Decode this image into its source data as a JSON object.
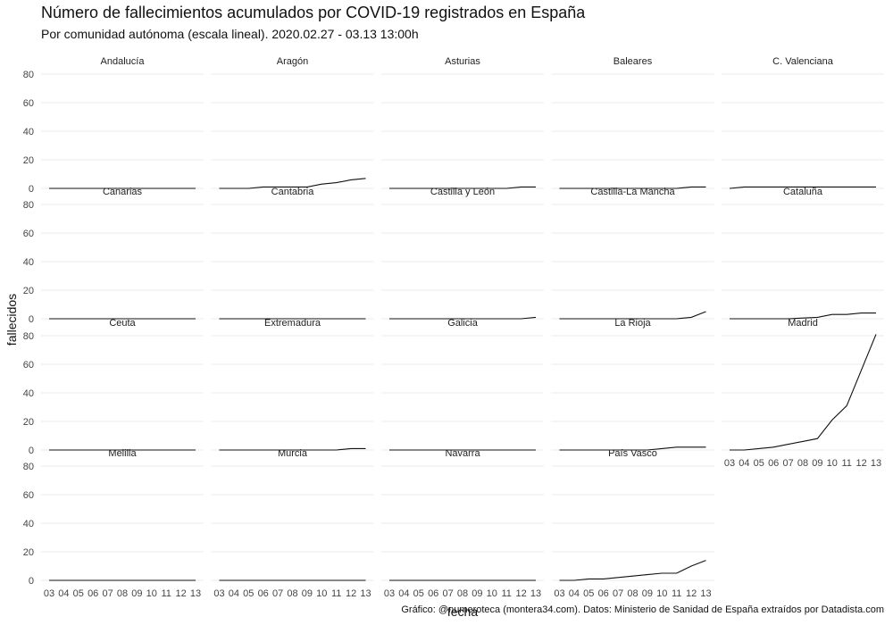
{
  "title": "Número de fallecimientos acumulados por COVID-19 registrados en España",
  "subtitle": "Por comunidad autónoma (escala lineal). 2020.02.27 - 03.13 13:00h",
  "caption": "Gráfico: @numeroteca (montera34.com). Datos: Ministerio de Sanidad de España extraídos por Datadista.com",
  "chart_data": {
    "type": "line",
    "facet": true,
    "xlabel": "fecha",
    "ylabel": "fallecidos",
    "x": [
      "03",
      "04",
      "05",
      "06",
      "07",
      "08",
      "09",
      "10",
      "11",
      "12",
      "13"
    ],
    "ylim": [
      0,
      85
    ],
    "yticks": [
      0,
      20,
      40,
      60,
      80
    ],
    "grid": true,
    "panels": [
      {
        "name": "Andalucía",
        "values": [
          0,
          0,
          0,
          0,
          0,
          0,
          0,
          0,
          0,
          0,
          0
        ]
      },
      {
        "name": "Aragón",
        "values": [
          0,
          0,
          0,
          1,
          1,
          1,
          1,
          3,
          4,
          6,
          7
        ]
      },
      {
        "name": "Asturias",
        "values": [
          0,
          0,
          0,
          0,
          0,
          0,
          0,
          0,
          0,
          1,
          1
        ]
      },
      {
        "name": "Baleares",
        "values": [
          0,
          0,
          0,
          0,
          0,
          0,
          0,
          0,
          0,
          1,
          1
        ]
      },
      {
        "name": "C. Valenciana",
        "values": [
          0,
          1,
          1,
          1,
          1,
          1,
          1,
          1,
          1,
          1,
          1
        ]
      },
      {
        "name": "Canarias",
        "values": [
          0,
          0,
          0,
          0,
          0,
          0,
          0,
          0,
          0,
          0,
          0
        ]
      },
      {
        "name": "Cantabria",
        "values": [
          0,
          0,
          0,
          0,
          0,
          0,
          0,
          0,
          0,
          0,
          0
        ]
      },
      {
        "name": "Castilla y León",
        "values": [
          0,
          0,
          0,
          0,
          0,
          0,
          0,
          0,
          0,
          0,
          1
        ]
      },
      {
        "name": "Castilla-La Mancha",
        "values": [
          0,
          0,
          0,
          0,
          0,
          0,
          0,
          0,
          0,
          1,
          5
        ]
      },
      {
        "name": "Cataluña",
        "values": [
          0,
          0,
          0,
          0,
          0,
          0.5,
          1,
          3,
          3,
          4,
          4
        ]
      },
      {
        "name": "Ceuta",
        "values": [
          0,
          0,
          0,
          0,
          0,
          0,
          0,
          0,
          0,
          0,
          0
        ]
      },
      {
        "name": "Extremadura",
        "values": [
          0,
          0,
          0,
          0,
          0,
          0,
          0,
          0,
          0,
          1,
          1
        ]
      },
      {
        "name": "Galicia",
        "values": [
          0,
          0,
          0,
          0,
          0,
          0,
          0,
          0,
          0,
          0,
          0
        ]
      },
      {
        "name": "La Rioja",
        "values": [
          0,
          0,
          0,
          0,
          0,
          0,
          0,
          1,
          2,
          2,
          2
        ]
      },
      {
        "name": "Madrid",
        "values": [
          0,
          0,
          1,
          2,
          4,
          6,
          8,
          21,
          31,
          56,
          81
        ]
      },
      {
        "name": "Melilla",
        "values": [
          0,
          0,
          0,
          0,
          0,
          0,
          0,
          0,
          0,
          0,
          0
        ]
      },
      {
        "name": "Murcia",
        "values": [
          0,
          0,
          0,
          0,
          0,
          0,
          0,
          0,
          0,
          0,
          0
        ]
      },
      {
        "name": "Navarra",
        "values": [
          0,
          0,
          0,
          0,
          0,
          0,
          0,
          0,
          0,
          0,
          0
        ]
      },
      {
        "name": "País Vasco",
        "values": [
          0,
          0,
          1,
          1,
          2,
          3,
          4,
          5,
          5,
          10,
          14
        ]
      }
    ]
  }
}
